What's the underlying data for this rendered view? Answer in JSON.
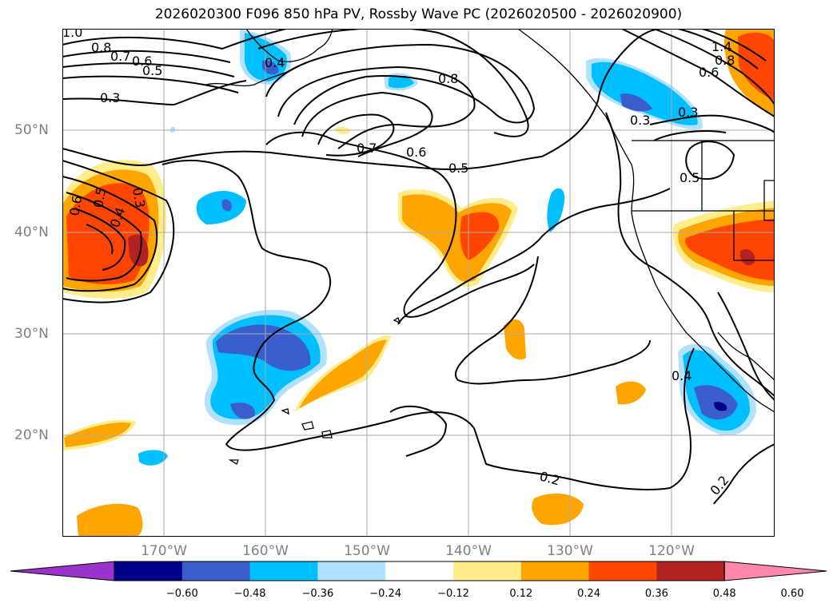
{
  "title": "2026020300 F096 850 hPa PV, Rossby Wave PC (2026020500 - 2026020900)",
  "longitude_labels": [
    "170°W",
    "160°W",
    "150°W",
    "140°W",
    "130°W",
    "120°W"
  ],
  "latitude_labels": [
    "50°N",
    "40°N",
    "30°N",
    "20°N"
  ],
  "colorbar": {
    "colors": [
      "#9933cc",
      "#00008b",
      "#3a5fcd",
      "#00bfff",
      "#b0e2ff",
      "#ffffff",
      "#ffec8b",
      "#ffa500",
      "#ff4500",
      "#b22222",
      "#ff88aa"
    ],
    "ticks": [
      "−0.60",
      "−0.48",
      "−0.36",
      "−0.24",
      "−0.12",
      "0.12",
      "0.24",
      "0.36",
      "0.48",
      "0.60"
    ]
  },
  "contour_labels": [
    "1.0",
    "0.8",
    "0.7",
    "0.6",
    "0.5",
    "0.3",
    "0.4",
    "0.8",
    "0.7",
    "0.6",
    "0.5",
    "0.6",
    "0.5",
    "0.4",
    "0.3",
    "1.4",
    "0.8",
    "0.6",
    "0.3",
    "0.3",
    "0.5",
    "0.4",
    "0.2",
    "0.2"
  ]
}
